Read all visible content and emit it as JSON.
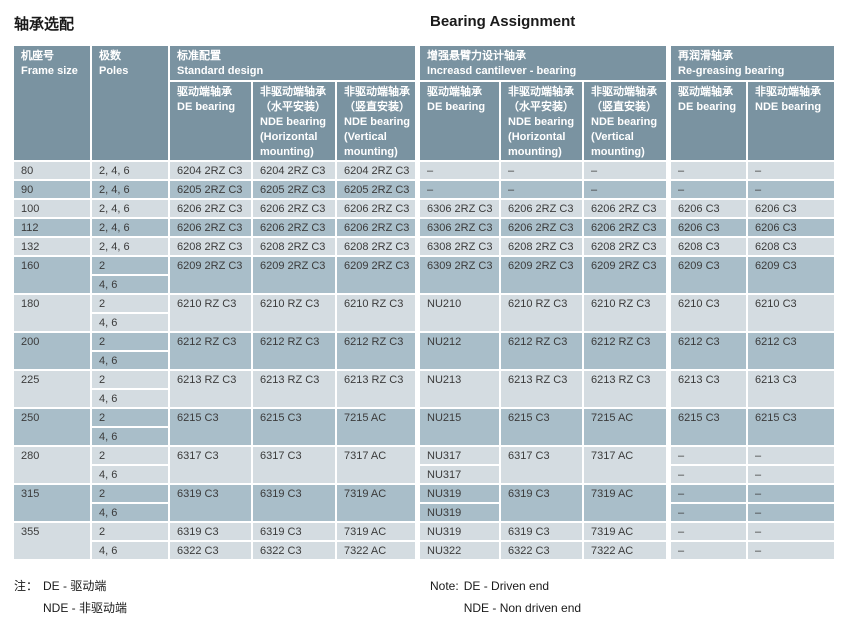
{
  "page": {
    "title_zh": "轴承选配",
    "title_en": "Bearing Assignment"
  },
  "table": {
    "header": {
      "frame": "机座号\nFrame size",
      "poles": "极数\nPoles",
      "groups": [
        {
          "title": "标准配置\nStandard design"
        },
        {
          "title": "增强悬臂力设计轴承\nIncreasd cantilever - bearing"
        },
        {
          "title": "再润滑轴承\nRe-greasing bearing"
        }
      ],
      "subcols": [
        "驱动端轴承\nDE bearing",
        "非驱动端轴承\n（水平安装）\nNDE bearing\n(Horizontal\nmounting)",
        "非驱动端轴承\n（竖直安装）\nNDE bearing\n(Vertical\nmounting)",
        "驱动端轴承\nDE bearing",
        "非驱动端轴承\n（水平安装）\nNDE bearing\n(Horizontal\nmounting)",
        "非驱动端轴承\n（竖直安装）\nNDE bearing\n(Vertical\nmounting)",
        "驱动端轴承\nDE bearing",
        "非驱动端轴承\nNDE bearing"
      ]
    },
    "groups": [
      {
        "frame": "80",
        "shade": "light",
        "rows": [
          {
            "p": "2, 4, 6",
            "c": [
              [
                "6204 2RZ C3",
                1
              ],
              [
                "6204 2RZ C3",
                1
              ],
              [
                "6204 2RZ C3",
                1
              ],
              [
                "–",
                1
              ],
              [
                "–",
                1
              ],
              [
                "–",
                1
              ],
              [
                "–",
                1
              ],
              [
                "–",
                1
              ]
            ]
          }
        ]
      },
      {
        "frame": "90",
        "shade": "dark",
        "rows": [
          {
            "p": "2, 4, 6",
            "c": [
              [
                "6205 2RZ C3",
                1
              ],
              [
                "6205 2RZ C3",
                1
              ],
              [
                "6205 2RZ C3",
                1
              ],
              [
                "–",
                1
              ],
              [
                "–",
                1
              ],
              [
                "–",
                1
              ],
              [
                "–",
                1
              ],
              [
                "–",
                1
              ]
            ]
          }
        ]
      },
      {
        "frame": "100",
        "shade": "light",
        "rows": [
          {
            "p": "2, 4, 6",
            "c": [
              [
                "6206 2RZ C3",
                1
              ],
              [
                "6206 2RZ C3",
                1
              ],
              [
                "6206 2RZ C3",
                1
              ],
              [
                "6306 2RZ C3",
                1
              ],
              [
                "6206 2RZ C3",
                1
              ],
              [
                "6206 2RZ C3",
                1
              ],
              [
                "6206  C3",
                1
              ],
              [
                "6206  C3",
                1
              ]
            ]
          }
        ]
      },
      {
        "frame": "112",
        "shade": "dark",
        "rows": [
          {
            "p": "2, 4, 6",
            "c": [
              [
                "6206 2RZ C3",
                1
              ],
              [
                "6206 2RZ C3",
                1
              ],
              [
                "6206 2RZ C3",
                1
              ],
              [
                "6306 2RZ C3",
                1
              ],
              [
                "6206 2RZ C3",
                1
              ],
              [
                "6206 2RZ C3",
                1
              ],
              [
                "6206  C3",
                1
              ],
              [
                "6206  C3",
                1
              ]
            ]
          }
        ]
      },
      {
        "frame": "132",
        "shade": "light",
        "rows": [
          {
            "p": "2, 4, 6",
            "c": [
              [
                "6208 2RZ C3",
                1
              ],
              [
                "6208 2RZ C3",
                1
              ],
              [
                "6208 2RZ C3",
                1
              ],
              [
                "6308 2RZ C3",
                1
              ],
              [
                "6208 2RZ C3",
                1
              ],
              [
                "6208 2RZ C3",
                1
              ],
              [
                "6208  C3",
                1
              ],
              [
                "6208  C3",
                1
              ]
            ]
          }
        ]
      },
      {
        "frame": "160",
        "shade": "dark",
        "rows": [
          {
            "p": "2",
            "c": [
              [
                "6209 2RZ C3",
                2
              ],
              [
                "6209 2RZ C3",
                2
              ],
              [
                "6209 2RZ C3",
                2
              ],
              [
                "6309 2RZ C3",
                2
              ],
              [
                "6209 2RZ C3",
                2
              ],
              [
                "6209 2RZ C3",
                2
              ],
              [
                "6209  C3",
                2
              ],
              [
                "6209  C3",
                2
              ]
            ]
          },
          {
            "p": "4, 6",
            "c": [
              null,
              null,
              null,
              null,
              null,
              null,
              null,
              null
            ]
          }
        ]
      },
      {
        "frame": "180",
        "shade": "light",
        "rows": [
          {
            "p": "2",
            "c": [
              [
                "6210 RZ C3",
                2
              ],
              [
                "6210 RZ C3",
                2
              ],
              [
                "6210 RZ C3",
                2
              ],
              [
                "NU210",
                2
              ],
              [
                "6210 RZ C3",
                2
              ],
              [
                "6210 RZ C3",
                2
              ],
              [
                "6210  C3",
                2
              ],
              [
                "6210  C3",
                2
              ]
            ]
          },
          {
            "p": "4, 6",
            "c": [
              null,
              null,
              null,
              null,
              null,
              null,
              null,
              null
            ]
          }
        ]
      },
      {
        "frame": "200",
        "shade": "dark",
        "rows": [
          {
            "p": "2",
            "c": [
              [
                "6212 RZ C3",
                2
              ],
              [
                "6212 RZ C3",
                2
              ],
              [
                "6212 RZ C3",
                2
              ],
              [
                "NU212",
                2
              ],
              [
                "6212 RZ C3",
                2
              ],
              [
                "6212 RZ C3",
                2
              ],
              [
                "6212  C3",
                2
              ],
              [
                "6212  C3",
                2
              ]
            ]
          },
          {
            "p": "4, 6",
            "c": [
              null,
              null,
              null,
              null,
              null,
              null,
              null,
              null
            ]
          }
        ]
      },
      {
        "frame": "225",
        "shade": "light",
        "rows": [
          {
            "p": "2",
            "c": [
              [
                "6213 RZ C3",
                2
              ],
              [
                "6213 RZ C3",
                2
              ],
              [
                "6213 RZ C3",
                2
              ],
              [
                "NU213",
                2
              ],
              [
                "6213 RZ C3",
                2
              ],
              [
                "6213 RZ C3",
                2
              ],
              [
                "6213  C3",
                2
              ],
              [
                "6213  C3",
                2
              ]
            ]
          },
          {
            "p": "4, 6",
            "c": [
              null,
              null,
              null,
              null,
              null,
              null,
              null,
              null
            ]
          }
        ]
      },
      {
        "frame": "250",
        "shade": "dark",
        "rows": [
          {
            "p": "2",
            "c": [
              [
                "6215 C3",
                2
              ],
              [
                "6215 C3",
                2
              ],
              [
                "7215 AC",
                2
              ],
              [
                "NU215",
                2
              ],
              [
                "6215 C3",
                2
              ],
              [
                "7215 AC",
                2
              ],
              [
                "6215 C3",
                2
              ],
              [
                "6215 C3",
                2
              ]
            ]
          },
          {
            "p": "4, 6",
            "c": [
              null,
              null,
              null,
              null,
              null,
              null,
              null,
              null
            ]
          }
        ]
      },
      {
        "frame": "280",
        "shade": "light",
        "rows": [
          {
            "p": "2",
            "c": [
              [
                "6317 C3",
                2
              ],
              [
                "6317 C3",
                2
              ],
              [
                "7317 AC",
                2
              ],
              [
                "NU317",
                1
              ],
              [
                "6317 C3",
                2
              ],
              [
                "7317 AC",
                2
              ],
              [
                "–",
                1
              ],
              [
                "–",
                1
              ]
            ]
          },
          {
            "p": "4, 6",
            "c": [
              null,
              null,
              null,
              [
                "NU317",
                1
              ],
              null,
              null,
              [
                "–",
                1
              ],
              [
                "–",
                1
              ]
            ]
          }
        ]
      },
      {
        "frame": "315",
        "shade": "dark",
        "rows": [
          {
            "p": "2",
            "c": [
              [
                "6319 C3",
                2
              ],
              [
                "6319 C3",
                2
              ],
              [
                "7319 AC",
                2
              ],
              [
                "NU319",
                1
              ],
              [
                "6319 C3",
                2
              ],
              [
                "7319 AC",
                2
              ],
              [
                "–",
                1
              ],
              [
                "–",
                1
              ]
            ]
          },
          {
            "p": "4, 6",
            "c": [
              null,
              null,
              null,
              [
                "NU319",
                1
              ],
              null,
              null,
              [
                "–",
                1
              ],
              [
                "–",
                1
              ]
            ]
          }
        ]
      },
      {
        "frame": "355",
        "shade": "light",
        "rows": [
          {
            "p": "2",
            "c": [
              [
                "6319 C3",
                1
              ],
              [
                "6319 C3",
                1
              ],
              [
                "7319 AC",
                1
              ],
              [
                "NU319",
                1
              ],
              [
                "6319 C3",
                1
              ],
              [
                "7319 AC",
                1
              ],
              [
                "–",
                1
              ],
              [
                "–",
                1
              ]
            ]
          },
          {
            "p": "4, 6",
            "c": [
              [
                "6322 C3",
                1
              ],
              [
                "6322 C3",
                1
              ],
              [
                "7322 AC",
                1
              ],
              [
                "NU322",
                1
              ],
              [
                "6322 C3",
                1
              ],
              [
                "7322 AC",
                1
              ],
              [
                "–",
                1
              ],
              [
                "–",
                1
              ]
            ]
          }
        ]
      }
    ]
  },
  "notes": {
    "zh": {
      "label": "注：",
      "line1": "DE - 驱动端",
      "line2": "NDE - 非驱动端"
    },
    "en": {
      "label": "Note:",
      "line1": "DE - Driven end",
      "line2": "NDE - Non driven end"
    }
  }
}
